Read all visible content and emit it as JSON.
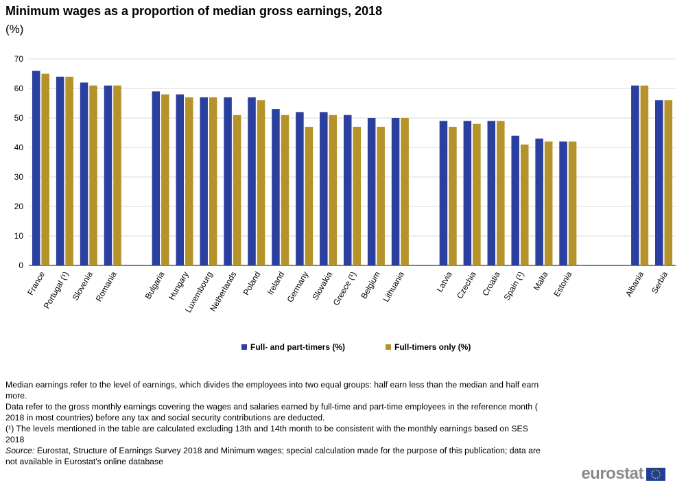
{
  "chart_data": {
    "type": "bar",
    "title": "Minimum wages as a proportion of median gross earnings, 2018",
    "subtitle": "(%)",
    "categories": [
      "France",
      "Portugal (¹)",
      "Slovenia",
      "Romania",
      null,
      "Bulgaria",
      "Hungary",
      "Luxembourg",
      "Netherlands",
      "Poland",
      "Ireland",
      "Germany",
      "Slovakia",
      "Greece (¹)",
      "Belgium",
      "Lithuania",
      null,
      "Latvia",
      "Czechia",
      "Croatia",
      "Spain (¹)",
      "Malta",
      "Estonia",
      null,
      null,
      "Albania",
      "Serbia"
    ],
    "series": [
      {
        "name": "Full- and part-timers (%)",
        "color": "#2b3f9f",
        "values": [
          66,
          64,
          62,
          61,
          null,
          59,
          58,
          57,
          57,
          57,
          53,
          52,
          52,
          51,
          50,
          50,
          null,
          49,
          49,
          49,
          44,
          43,
          42,
          null,
          null,
          61,
          56
        ]
      },
      {
        "name": "Full-timers only (%)",
        "color": "#b5922a",
        "values": [
          65,
          64,
          61,
          61,
          null,
          58,
          57,
          57,
          51,
          56,
          51,
          47,
          51,
          47,
          47,
          50,
          null,
          47,
          48,
          49,
          41,
          42,
          42,
          null,
          null,
          61,
          56
        ]
      }
    ],
    "ylim": [
      0,
      70
    ],
    "yticks": [
      0,
      10,
      20,
      30,
      40,
      50,
      60,
      70
    ],
    "grid": true,
    "legend": "bottom"
  },
  "notes": [
    "Median earnings refer to the level of earnings, which divides the employees into two equal groups: half earn less than the median and half earn more.",
    "Data refer to the gross monthly earnings covering the wages and salaries earned by full-time and part-time employees in the reference month ( 2018 in most countries) before any tax and social security contributions are deducted.",
    "(¹) The levels mentioned in the table are calculated excluding 13th and 14th month to be consistent with the monthly earnings based on SES 2018"
  ],
  "source_label": "Source:",
  "source": "Eurostat, Structure of Earnings Survey 2018 and Minimum wages; special calculation made for the purpose of this publication; data are not available in Eurostat's online database",
  "logo": "eurostat"
}
